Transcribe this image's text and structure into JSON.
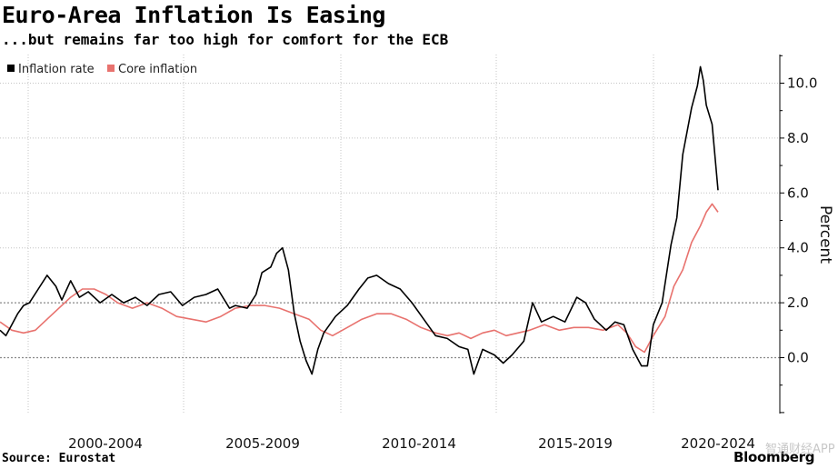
{
  "header": {
    "title": "Euro-Area Inflation Is Easing",
    "subtitle": "...but remains far too high for comfort for the ECB"
  },
  "footer": {
    "source": "Source: Eurostat",
    "brand": "Bloomberg",
    "watermark": "智通财经APP"
  },
  "chart_data": {
    "type": "line",
    "title": "Euro-Area Inflation Is Easing",
    "subtitle": "...but remains far too high for comfort for the ECB",
    "ylabel": "Percent",
    "xlabel": "",
    "ylim": [
      -2,
      11
    ],
    "xlim": [
      1999.0,
      2025.5
    ],
    "y_ticks": [
      0.0,
      2.0,
      4.0,
      6.0,
      8.0,
      10.0
    ],
    "y_tick_labels": [
      "0.0",
      "2.0",
      "4.0",
      "6.0",
      "8.0",
      "10.0"
    ],
    "x_categories": [
      "2000-2004",
      "2005-2009",
      "2010-2014",
      "2015-2019",
      "2020-2024"
    ],
    "grid": true,
    "legend_position": "top-left",
    "colors": {
      "inflation": "#000000",
      "core": "#e8726e",
      "grid": "#bbbbbb",
      "dashed_grid": "#888888"
    },
    "series": [
      {
        "name": "Inflation rate",
        "x": [
          1999.0,
          1999.2,
          1999.4,
          1999.6,
          1999.8,
          2000.0,
          2000.3,
          2000.6,
          2000.9,
          2001.1,
          2001.4,
          2001.7,
          2002.0,
          2002.4,
          2002.8,
          2003.2,
          2003.6,
          2004.0,
          2004.4,
          2004.8,
          2005.2,
          2005.6,
          2006.0,
          2006.4,
          2006.8,
          2007.0,
          2007.4,
          2007.7,
          2007.9,
          2008.2,
          2008.4,
          2008.6,
          2008.8,
          2009.0,
          2009.2,
          2009.4,
          2009.6,
          2009.8,
          2010.0,
          2010.4,
          2010.8,
          2011.2,
          2011.5,
          2011.8,
          2012.2,
          2012.6,
          2013.0,
          2013.4,
          2013.8,
          2014.2,
          2014.6,
          2014.9,
          2015.1,
          2015.4,
          2015.8,
          2016.1,
          2016.4,
          2016.8,
          2017.1,
          2017.4,
          2017.8,
          2018.2,
          2018.6,
          2018.9,
          2019.2,
          2019.6,
          2019.9,
          2020.2,
          2020.5,
          2020.8,
          2021.0,
          2021.2,
          2021.5,
          2021.8,
          2022.0,
          2022.2,
          2022.5,
          2022.7,
          2022.8,
          2022.9,
          2023.0,
          2023.2,
          2023.4
        ],
        "values": [
          1.0,
          0.8,
          1.2,
          1.6,
          1.9,
          2.0,
          2.5,
          3.0,
          2.6,
          2.1,
          2.8,
          2.2,
          2.4,
          2.0,
          2.3,
          2.0,
          2.2,
          1.9,
          2.3,
          2.4,
          1.9,
          2.2,
          2.3,
          2.5,
          1.8,
          1.9,
          1.8,
          2.3,
          3.1,
          3.3,
          3.8,
          4.0,
          3.2,
          1.6,
          0.6,
          -0.1,
          -0.6,
          0.3,
          0.9,
          1.5,
          1.9,
          2.5,
          2.9,
          3.0,
          2.7,
          2.5,
          2.0,
          1.4,
          0.8,
          0.7,
          0.4,
          0.3,
          -0.6,
          0.3,
          0.1,
          -0.2,
          0.1,
          0.6,
          2.0,
          1.3,
          1.5,
          1.3,
          2.2,
          2.0,
          1.4,
          1.0,
          1.3,
          1.2,
          0.3,
          -0.3,
          -0.3,
          1.2,
          2.0,
          4.1,
          5.1,
          7.4,
          9.1,
          9.9,
          10.6,
          10.1,
          9.2,
          8.5,
          6.1
        ]
      },
      {
        "name": "Core inflation",
        "x": [
          1999.0,
          1999.4,
          1999.8,
          2000.2,
          2000.6,
          2001.0,
          2001.4,
          2001.8,
          2002.2,
          2002.6,
          2003.0,
          2003.5,
          2004.0,
          2004.5,
          2005.0,
          2005.5,
          2006.0,
          2006.5,
          2007.0,
          2007.5,
          2008.0,
          2008.5,
          2009.0,
          2009.5,
          2009.9,
          2010.3,
          2010.8,
          2011.3,
          2011.8,
          2012.3,
          2012.8,
          2013.3,
          2013.8,
          2014.2,
          2014.6,
          2015.0,
          2015.4,
          2015.8,
          2016.2,
          2016.6,
          2017.0,
          2017.5,
          2018.0,
          2018.5,
          2019.0,
          2019.5,
          2020.0,
          2020.3,
          2020.6,
          2020.9,
          2021.2,
          2021.6,
          2021.9,
          2022.2,
          2022.5,
          2022.8,
          2023.0,
          2023.2,
          2023.4
        ],
        "values": [
          1.3,
          1.0,
          0.9,
          1.0,
          1.4,
          1.8,
          2.2,
          2.5,
          2.5,
          2.3,
          2.0,
          1.8,
          2.0,
          1.8,
          1.5,
          1.4,
          1.3,
          1.5,
          1.8,
          1.9,
          1.9,
          1.8,
          1.6,
          1.4,
          1.0,
          0.8,
          1.1,
          1.4,
          1.6,
          1.6,
          1.4,
          1.1,
          0.9,
          0.8,
          0.9,
          0.7,
          0.9,
          1.0,
          0.8,
          0.9,
          1.0,
          1.2,
          1.0,
          1.1,
          1.1,
          1.0,
          1.2,
          0.9,
          0.4,
          0.2,
          0.8,
          1.5,
          2.6,
          3.2,
          4.2,
          4.8,
          5.3,
          5.6,
          5.3
        ]
      }
    ]
  }
}
